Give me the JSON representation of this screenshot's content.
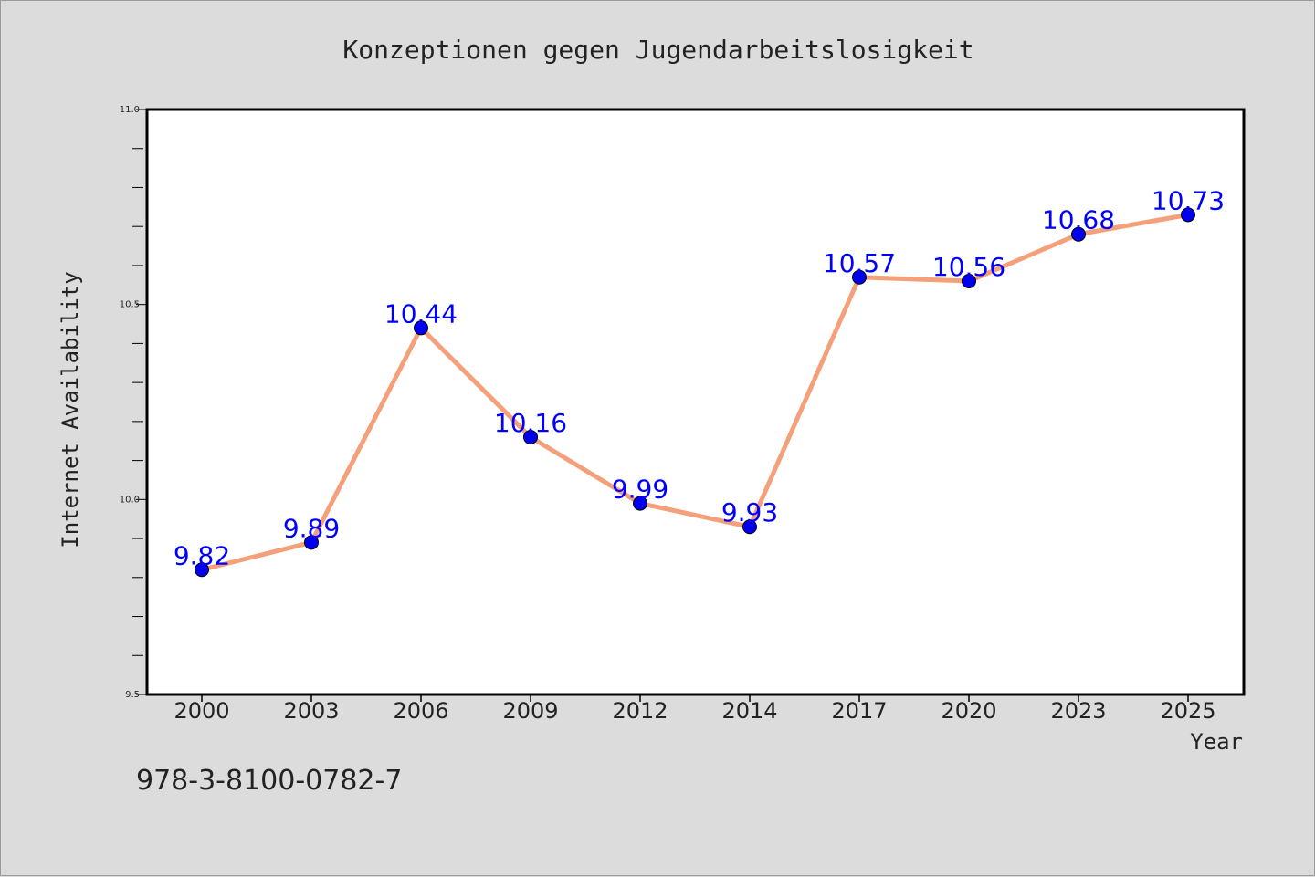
{
  "footer_code": "978-3-8100-0782-7",
  "chart_data": {
    "type": "line",
    "title": "Konzeptionen gegen Jugendarbeitslosigkeit",
    "xlabel": "Year",
    "ylabel": "Internet Availability",
    "categories": [
      "2000",
      "2003",
      "2006",
      "2009",
      "2012",
      "2014",
      "2017",
      "2020",
      "2023",
      "2025"
    ],
    "values": [
      9.82,
      9.89,
      10.44,
      10.16,
      9.99,
      9.93,
      10.57,
      10.56,
      10.68,
      10.73
    ],
    "data_labels": [
      "9.82",
      "9.89",
      "10.44",
      "10.16",
      "9.99",
      "9.93",
      "10.57",
      "10.56",
      "10.68",
      "10.73"
    ],
    "ylim": [
      9.5,
      11.0
    ],
    "y_major_ticks": [
      "9.5",
      "10.0",
      "10.5",
      "11.0"
    ],
    "grid": false,
    "legend": "none",
    "colors": {
      "line": "#f4a07a",
      "marker": "#0000ee",
      "marker_edge": "#000000",
      "data_label": "#0000ff",
      "text": "#222222",
      "plot_bg": "#ffffff",
      "page_bg": "#dcdcdc"
    }
  }
}
